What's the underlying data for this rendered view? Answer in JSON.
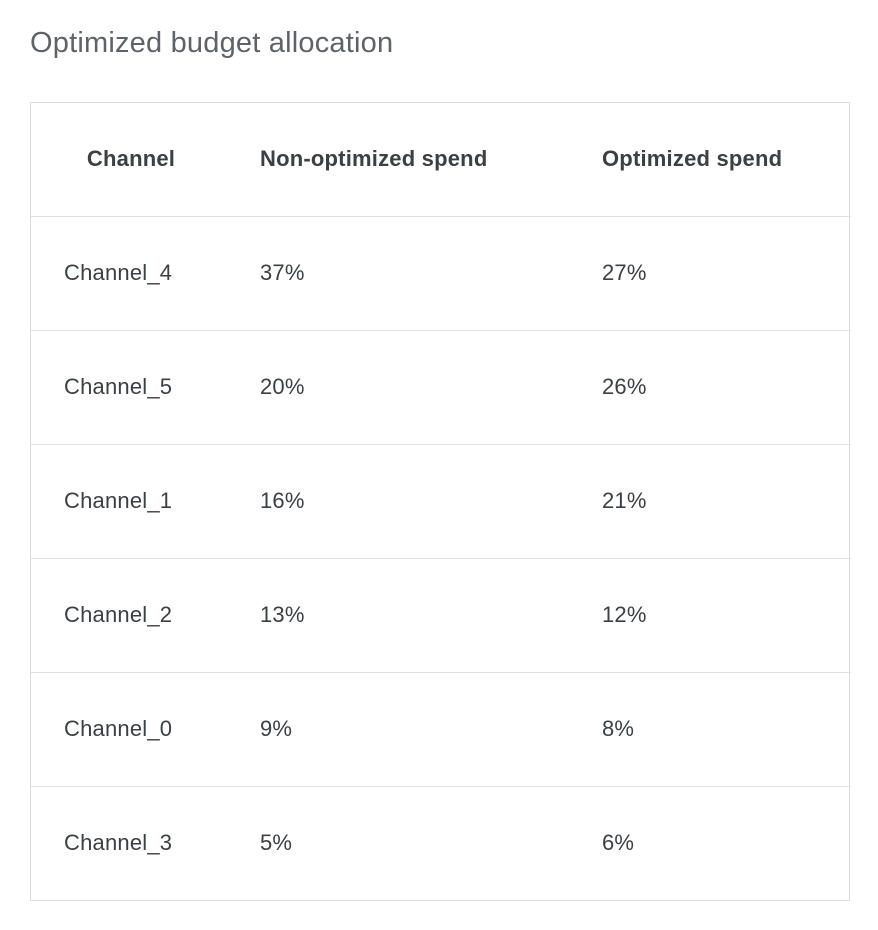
{
  "page_title": "Optimized budget allocation",
  "chart_data": {
    "type": "table",
    "title": "Optimized budget allocation",
    "columns": [
      "Channel",
      "Non-optimized spend",
      "Optimized spend"
    ],
    "rows": [
      [
        "Channel_4",
        "37%",
        "27%"
      ],
      [
        "Channel_5",
        "20%",
        "26%"
      ],
      [
        "Channel_1",
        "16%",
        "21%"
      ],
      [
        "Channel_2",
        "13%",
        "12%"
      ],
      [
        "Channel_0",
        "9%",
        "8%"
      ],
      [
        "Channel_3",
        "5%",
        "6%"
      ]
    ]
  },
  "colors": {
    "title_text": "#5f6368",
    "header_text": "#3c4043",
    "body_text": "#3c4043",
    "card_border": "#dadce0",
    "row_divider": "#e0e0e0",
    "background": "#ffffff"
  }
}
